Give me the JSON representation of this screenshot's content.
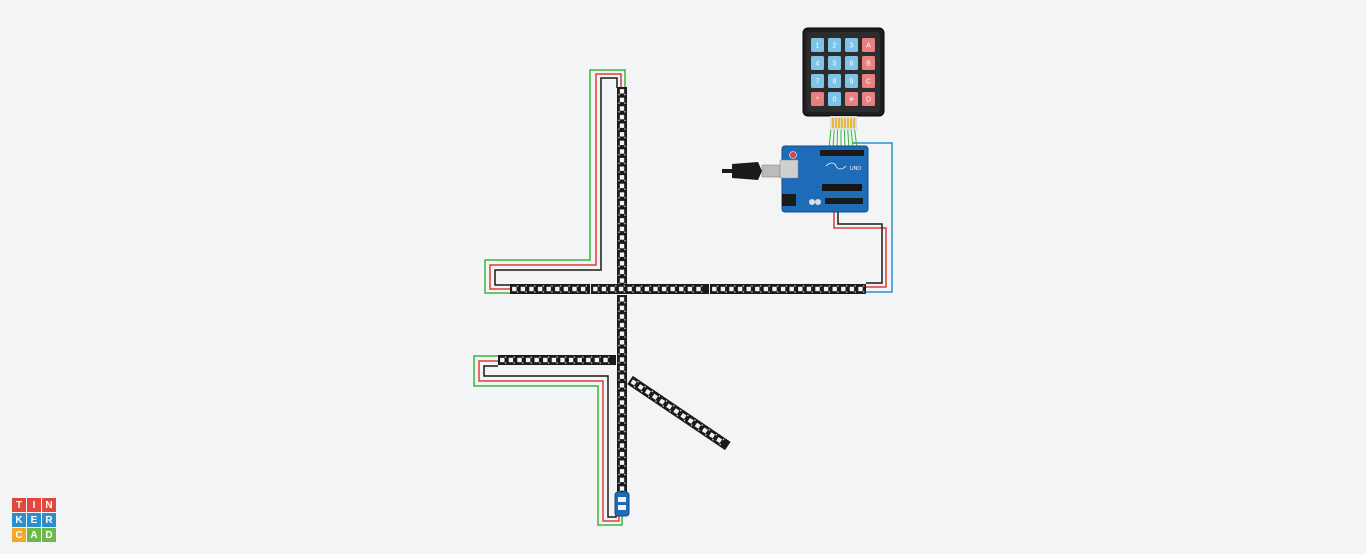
{
  "app": {
    "logo_letters": [
      "T",
      "I",
      "N",
      "K",
      "E",
      "R",
      "C",
      "A",
      "D"
    ],
    "logo_colors": [
      "#e2483d",
      "#e2483d",
      "#e2483d",
      "#2a8fce",
      "#2a8fce",
      "#2a8fce",
      "#f0a72b",
      "#6cb84b",
      "#6cb84b"
    ]
  },
  "keypad": {
    "keys": [
      "1",
      "2",
      "3",
      "A",
      "4",
      "5",
      "6",
      "B",
      "7",
      "8",
      "9",
      "C",
      "*",
      "0",
      "#",
      "D"
    ],
    "number_key_color": "#7ec4e8",
    "letter_key_color": "#e88080"
  },
  "board": {
    "model_label": "UNO",
    "color": "#1e6bb8"
  },
  "wires": {
    "power_color": "#e03c3c",
    "ground_color": "#1a1a1a",
    "data_color": "#3ab53a",
    "signal_color": "#2a8fce"
  },
  "strip_color": "#1a1a1a"
}
